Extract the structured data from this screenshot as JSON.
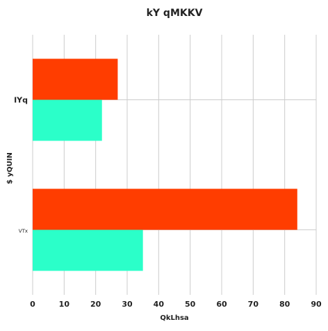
{
  "chart_data": {
    "type": "bar",
    "orientation": "horizontal",
    "title": "kY qMKKV",
    "xlabel": "QkLhsa",
    "ylabel": "$ yQUIN",
    "categories": [
      "IYq",
      "VTx"
    ],
    "series": [
      {
        "values": [
          27,
          84
        ],
        "color": "#ff3d00"
      },
      {
        "values": [
          22,
          35
        ],
        "color": "#2bffc9"
      }
    ],
    "xlim": [
      0,
      90
    ],
    "xticks": [
      0,
      10,
      20,
      30,
      40,
      50,
      60,
      70,
      80,
      90
    ],
    "grid": true,
    "legend": "none"
  }
}
